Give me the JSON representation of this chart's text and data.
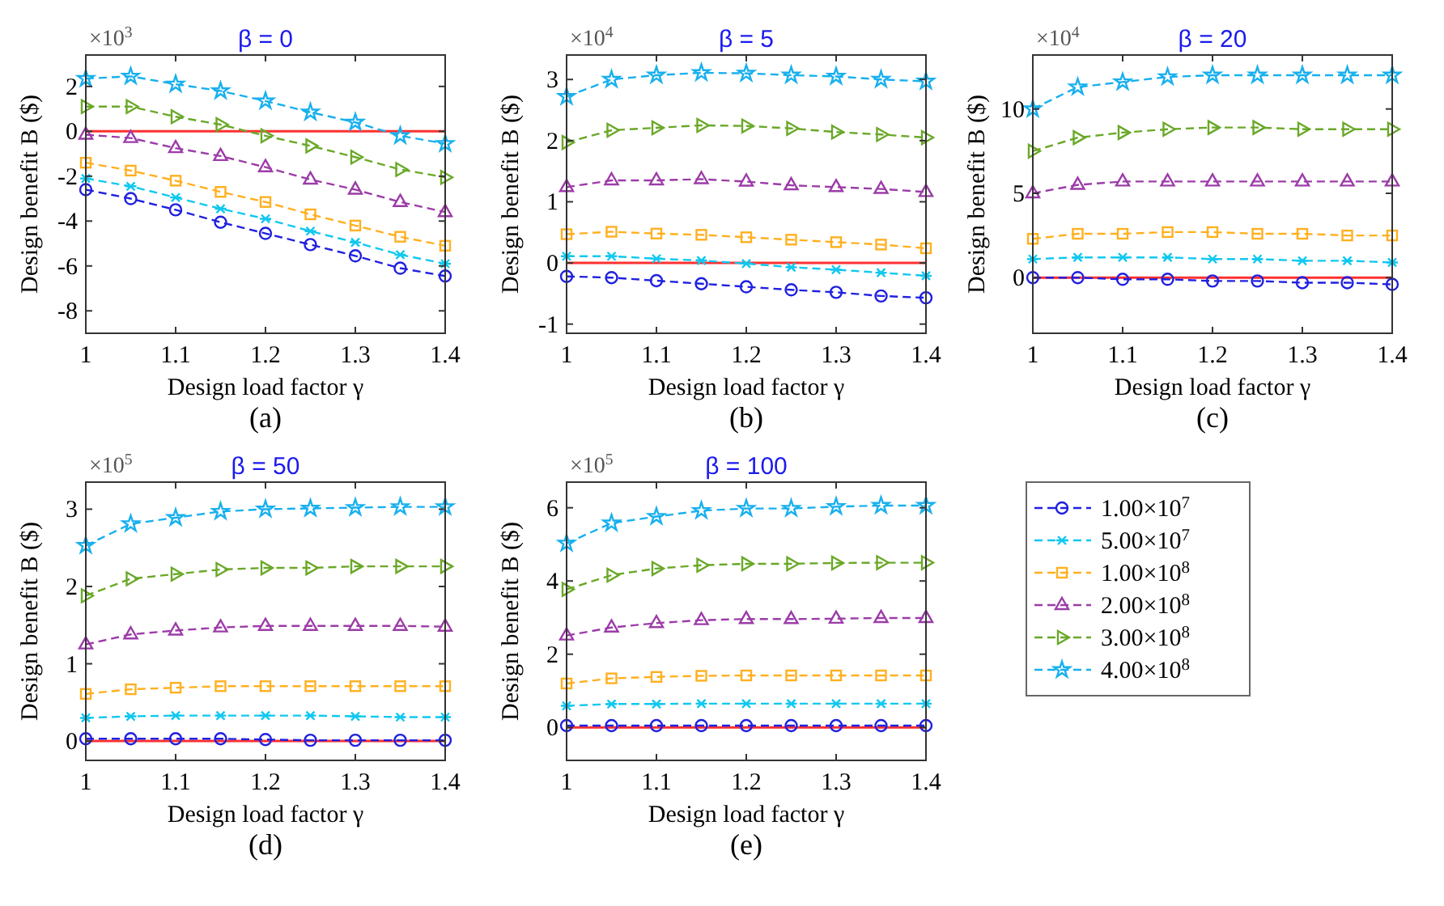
{
  "chart_data": [
    {
      "type": "line",
      "title": "β = 0",
      "xlabel": "Design load factor γ",
      "ylabel": "Design benefit B ($)",
      "annotations": [
        "×10$^{3}$",
        "(a)"
      ],
      "x": [
        1,
        1.05,
        1.1,
        1.15,
        1.2,
        1.25,
        1.3,
        1.35,
        1.4
      ],
      "xlim": [
        1,
        1.4
      ],
      "xticks": [
        1,
        1.1,
        1.2,
        1.3,
        1.4
      ],
      "ylim": [
        -9,
        3.4
      ],
      "yticks": [
        -8,
        -6,
        -4,
        -2,
        0,
        2
      ],
      "line_style": "dashed",
      "grid": false,
      "legend": false,
      "ref_lines": [
        {
          "axis": "y",
          "value": 0,
          "color": "#ff3030"
        }
      ],
      "series": [
        {
          "color": "#2020e0",
          "marker": "circle",
          "values": [
            -2.6,
            -3.0,
            -3.5,
            -4.05,
            -4.55,
            -5.05,
            -5.55,
            -6.1,
            -6.45
          ]
        },
        {
          "color": "#10c8f0",
          "marker": "cross",
          "values": [
            -2.1,
            -2.45,
            -2.95,
            -3.45,
            -3.9,
            -4.45,
            -4.95,
            -5.5,
            -5.9
          ]
        },
        {
          "color": "#ffb020",
          "marker": "square",
          "values": [
            -1.4,
            -1.75,
            -2.2,
            -2.7,
            -3.15,
            -3.7,
            -4.2,
            -4.7,
            -5.1
          ]
        },
        {
          "color": "#9c3ca8",
          "marker": "triangle",
          "values": [
            -0.15,
            -0.3,
            -0.75,
            -1.1,
            -1.6,
            -2.15,
            -2.6,
            -3.15,
            -3.6
          ]
        },
        {
          "color": "#6aa828",
          "marker": "triangle-right",
          "values": [
            1.1,
            1.1,
            0.65,
            0.3,
            -0.2,
            -0.65,
            -1.15,
            -1.7,
            -2.05
          ]
        },
        {
          "color": "#18b0ee",
          "marker": "star",
          "values": [
            2.35,
            2.45,
            2.1,
            1.8,
            1.35,
            0.85,
            0.4,
            -0.2,
            -0.55
          ]
        }
      ]
    },
    {
      "type": "line",
      "title": "β = 5",
      "xlabel": "Design load factor γ",
      "ylabel": "Design benefit B ($)",
      "annotations": [
        "×10$^{4}$",
        "(b)"
      ],
      "x": [
        1,
        1.05,
        1.1,
        1.15,
        1.2,
        1.25,
        1.3,
        1.35,
        1.4
      ],
      "xlim": [
        1,
        1.4
      ],
      "xticks": [
        1,
        1.1,
        1.2,
        1.3,
        1.4
      ],
      "ylim": [
        -1.15,
        3.4
      ],
      "yticks": [
        -1,
        0,
        1,
        2,
        3
      ],
      "line_style": "dashed",
      "grid": false,
      "legend": false,
      "ref_lines": [
        {
          "axis": "y",
          "value": 0,
          "color": "#ff3030"
        }
      ],
      "series": [
        {
          "color": "#2020e0",
          "marker": "circle",
          "values": [
            -0.22,
            -0.24,
            -0.29,
            -0.34,
            -0.39,
            -0.44,
            -0.48,
            -0.54,
            -0.57
          ]
        },
        {
          "color": "#10c8f0",
          "marker": "cross",
          "values": [
            0.11,
            0.11,
            0.07,
            0.04,
            -0.01,
            -0.07,
            -0.11,
            -0.16,
            -0.21
          ]
        },
        {
          "color": "#ffb020",
          "marker": "square",
          "values": [
            0.47,
            0.51,
            0.48,
            0.46,
            0.42,
            0.38,
            0.34,
            0.3,
            0.24
          ]
        },
        {
          "color": "#9c3ca8",
          "marker": "triangle",
          "values": [
            1.24,
            1.35,
            1.35,
            1.37,
            1.33,
            1.27,
            1.24,
            1.21,
            1.16
          ]
        },
        {
          "color": "#6aa828",
          "marker": "triangle-right",
          "values": [
            1.97,
            2.17,
            2.21,
            2.25,
            2.24,
            2.2,
            2.14,
            2.1,
            2.05
          ]
        },
        {
          "color": "#18b0ee",
          "marker": "star",
          "values": [
            2.72,
            3.0,
            3.07,
            3.11,
            3.1,
            3.07,
            3.05,
            3.0,
            2.97
          ]
        }
      ]
    },
    {
      "type": "line",
      "title": "β = 20",
      "xlabel": "Design load factor γ",
      "ylabel": "Design benefit B ($)",
      "annotations": [
        "×10$^{4}$",
        "(c)"
      ],
      "x": [
        1,
        1.05,
        1.1,
        1.15,
        1.2,
        1.25,
        1.3,
        1.35,
        1.4
      ],
      "xlim": [
        1,
        1.4
      ],
      "xticks": [
        1,
        1.1,
        1.2,
        1.3,
        1.4
      ],
      "ylim": [
        -3.3,
        13.2
      ],
      "yticks": [
        0,
        5,
        10
      ],
      "line_style": "dashed",
      "grid": false,
      "legend": false,
      "ref_lines": [
        {
          "axis": "y",
          "value": 0,
          "color": "#ff3030"
        }
      ],
      "series": [
        {
          "color": "#2020e0",
          "marker": "circle",
          "values": [
            0,
            0,
            -0.1,
            -0.1,
            -0.2,
            -0.2,
            -0.3,
            -0.3,
            -0.4
          ]
        },
        {
          "color": "#10c8f0",
          "marker": "cross",
          "values": [
            1.1,
            1.2,
            1.2,
            1.2,
            1.1,
            1.1,
            1,
            1,
            0.9
          ]
        },
        {
          "color": "#ffb020",
          "marker": "square",
          "values": [
            2.3,
            2.6,
            2.6,
            2.7,
            2.7,
            2.6,
            2.6,
            2.5,
            2.5
          ]
        },
        {
          "color": "#9c3ca8",
          "marker": "triangle",
          "values": [
            5,
            5.5,
            5.7,
            5.7,
            5.7,
            5.7,
            5.7,
            5.7,
            5.7
          ]
        },
        {
          "color": "#6aa828",
          "marker": "triangle-right",
          "values": [
            7.5,
            8.3,
            8.6,
            8.8,
            8.9,
            8.9,
            8.8,
            8.8,
            8.8
          ]
        },
        {
          "color": "#18b0ee",
          "marker": "star",
          "values": [
            10,
            11.3,
            11.6,
            11.9,
            12,
            12,
            12,
            12,
            12
          ]
        }
      ]
    },
    {
      "type": "line",
      "title": "β = 50",
      "xlabel": "Design load factor γ",
      "ylabel": "Design benefit B ($)",
      "annotations": [
        "×10$^{5}$",
        "(d)"
      ],
      "x": [
        1,
        1.05,
        1.1,
        1.15,
        1.2,
        1.25,
        1.3,
        1.35,
        1.4
      ],
      "xlim": [
        1,
        1.4
      ],
      "xticks": [
        1,
        1.1,
        1.2,
        1.3,
        1.4
      ],
      "ylim": [
        -0.25,
        3.35
      ],
      "yticks": [
        0,
        1,
        2,
        3
      ],
      "line_style": "dashed",
      "grid": false,
      "legend": false,
      "ref_lines": [
        {
          "axis": "y",
          "value": 0,
          "color": "#ff3030"
        }
      ],
      "series": [
        {
          "color": "#2020e0",
          "marker": "circle",
          "values": [
            0.03,
            0.03,
            0.03,
            0.03,
            0.02,
            0.01,
            0.01,
            0.01,
            0.01
          ]
        },
        {
          "color": "#10c8f0",
          "marker": "cross",
          "values": [
            0.3,
            0.32,
            0.33,
            0.33,
            0.33,
            0.33,
            0.32,
            0.31,
            0.31
          ]
        },
        {
          "color": "#ffb020",
          "marker": "square",
          "values": [
            0.61,
            0.67,
            0.69,
            0.71,
            0.71,
            0.71,
            0.71,
            0.71,
            0.71
          ]
        },
        {
          "color": "#9c3ca8",
          "marker": "triangle",
          "values": [
            1.25,
            1.38,
            1.43,
            1.47,
            1.49,
            1.49,
            1.49,
            1.49,
            1.48
          ]
        },
        {
          "color": "#6aa828",
          "marker": "triangle-right",
          "values": [
            1.88,
            2.1,
            2.16,
            2.22,
            2.24,
            2.24,
            2.26,
            2.26,
            2.26
          ]
        },
        {
          "color": "#18b0ee",
          "marker": "star",
          "values": [
            2.53,
            2.81,
            2.89,
            2.97,
            3.0,
            3.01,
            3.02,
            3.03,
            3.03
          ]
        }
      ]
    },
    {
      "type": "line",
      "title": "β = 100",
      "xlabel": "Design load factor γ",
      "ylabel": "Design benefit B ($)",
      "annotations": [
        "×10$^{5}$",
        "(e)"
      ],
      "x": [
        1,
        1.05,
        1.1,
        1.15,
        1.2,
        1.25,
        1.3,
        1.35,
        1.4
      ],
      "xlim": [
        1,
        1.4
      ],
      "xticks": [
        1,
        1.1,
        1.2,
        1.3,
        1.4
      ],
      "ylim": [
        -0.9,
        6.7
      ],
      "yticks": [
        0,
        2,
        4,
        6
      ],
      "line_style": "dashed",
      "grid": false,
      "legend": "right",
      "ref_lines": [
        {
          "axis": "y",
          "value": 0,
          "color": "#ff3030"
        }
      ],
      "series": [
        {
          "name": "1.00×10$^{7}$",
          "color": "#2020e0",
          "marker": "circle",
          "values": [
            0.05,
            0.05,
            0.05,
            0.05,
            0.05,
            0.05,
            0.05,
            0.05,
            0.05
          ]
        },
        {
          "name": "5.00×10$^{7}$",
          "color": "#10c8f0",
          "marker": "cross",
          "values": [
            0.59,
            0.64,
            0.64,
            0.65,
            0.65,
            0.65,
            0.65,
            0.65,
            0.65
          ]
        },
        {
          "name": "1.00×10$^{8}$",
          "color": "#ffb020",
          "marker": "square",
          "values": [
            1.2,
            1.34,
            1.38,
            1.41,
            1.42,
            1.42,
            1.42,
            1.42,
            1.42
          ]
        },
        {
          "name": "2.00×10$^{8}$",
          "color": "#9c3ca8",
          "marker": "triangle",
          "values": [
            2.51,
            2.73,
            2.85,
            2.93,
            2.96,
            2.96,
            2.97,
            2.99,
            2.99
          ]
        },
        {
          "name": "3.00×10$^{8}$",
          "color": "#6aa828",
          "marker": "triangle-right",
          "values": [
            3.77,
            4.16,
            4.34,
            4.43,
            4.47,
            4.47,
            4.49,
            4.5,
            4.5
          ]
        },
        {
          "name": "4.00×10$^{8}$",
          "color": "#18b0ee",
          "marker": "star",
          "values": [
            5.03,
            5.58,
            5.76,
            5.92,
            5.98,
            5.98,
            6.03,
            6.06,
            6.06
          ]
        }
      ]
    }
  ]
}
